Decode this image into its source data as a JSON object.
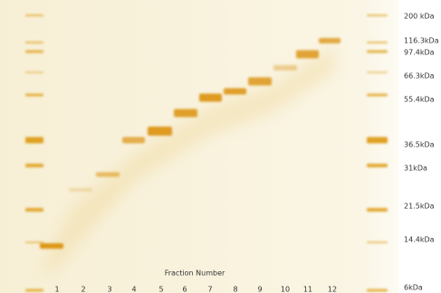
{
  "markers": [
    "200 kDa",
    "116.3kDa",
    "97.4kDa",
    "66.3kDa",
    "55.4kDa",
    "36.5kDa",
    "31kDa",
    "21.5kDa",
    "14.4kDa",
    "6kDa"
  ],
  "lanes": [
    "1",
    "2",
    "3",
    "4",
    "5",
    "6",
    "7",
    "8",
    "9",
    "10",
    "11",
    "12"
  ],
  "axis_label": "Fraction Number"
}
